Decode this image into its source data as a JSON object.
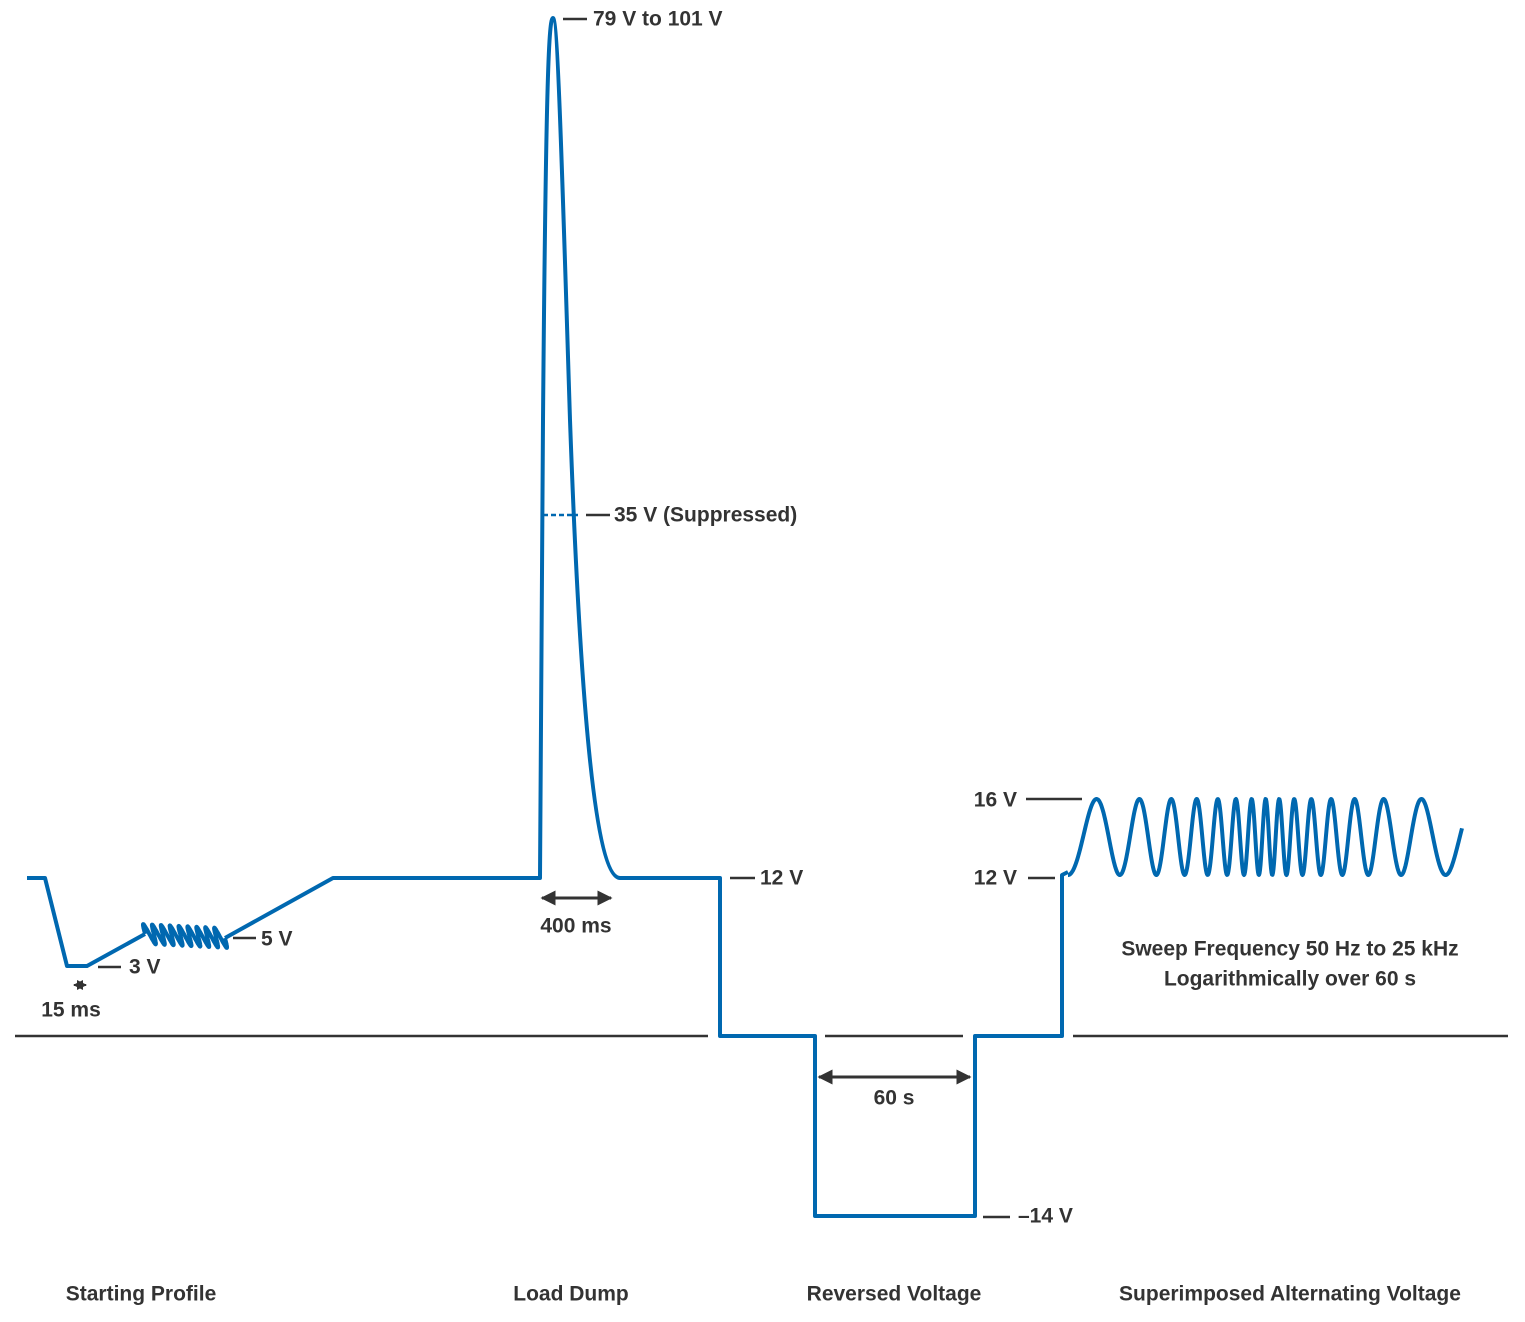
{
  "annotations": {
    "peak": "79 V to 101 V",
    "suppressed": "35 V (Suppressed)",
    "load_dump_level": "12 V",
    "ripple_level": "5 V",
    "dip_level": "3 V",
    "dip_time": "15 ms",
    "load_dump_time": "400 ms",
    "reverse_time": "60 s",
    "reverse_level": "–14 V",
    "sweep_high": "16 V",
    "sweep_low": "12 V",
    "sweep_line1": "Sweep Frequency 50 Hz to 25 kHz",
    "sweep_line2": "Logarithmically over 60 s"
  },
  "sections": [
    "Starting Profile",
    "Load Dump",
    "Reversed Voltage",
    "Superimposed Alternating Voltage"
  ]
}
